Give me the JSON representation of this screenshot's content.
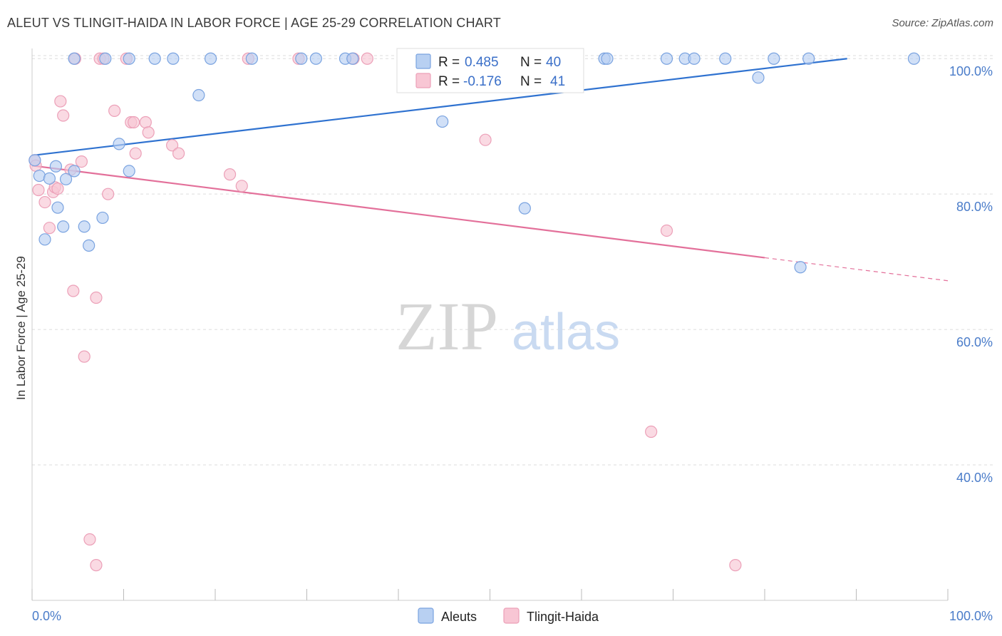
{
  "title": "ALEUT VS TLINGIT-HAIDA IN LABOR FORCE | AGE 25-29 CORRELATION CHART",
  "source": "Source: ZipAtlas.com",
  "watermark": {
    "zip": "ZIP",
    "atlas": "atlas"
  },
  "colors": {
    "aleut_fill": "#b8d0f2",
    "aleut_stroke": "#7aa3e0",
    "aleut_line": "#2f72d0",
    "tlingit_fill": "#f8c6d4",
    "tlingit_stroke": "#eca0b8",
    "tlingit_line": "#e3709a",
    "tick_label": "#4a7cc9",
    "grid": "#dddddd"
  },
  "legend": {
    "rows": [
      {
        "r_label": "R = ",
        "r_value": "0.485",
        "n_label": "N = ",
        "n_value": "40"
      },
      {
        "r_label": "R = ",
        "r_value": "-0.176",
        "n_label": "N = ",
        "n_value": "41"
      }
    ]
  },
  "chart_data": {
    "type": "scatter",
    "xlabel": "",
    "ylabel": "In Labor Force | Age 25-29",
    "xlim": [
      0,
      100
    ],
    "ylim": [
      20,
      101.5
    ],
    "x_tick_labels": [
      "0.0%",
      "100.0%"
    ],
    "y_ticks": [
      {
        "value": 100,
        "label": "100.0%"
      },
      {
        "value": 80,
        "label": "80.0%"
      },
      {
        "value": 60,
        "label": "60.0%"
      },
      {
        "value": 40,
        "label": "40.0%"
      }
    ],
    "grid": "horizontal dashed",
    "legend_position": "top-center",
    "series": [
      {
        "name": "Aleuts",
        "points": [
          [
            0.3,
            85.0
          ],
          [
            0.8,
            82.7
          ],
          [
            1.4,
            73.3
          ],
          [
            1.9,
            82.3
          ],
          [
            2.6,
            84.1
          ],
          [
            2.8,
            78.0
          ],
          [
            3.4,
            75.2
          ],
          [
            3.7,
            82.2
          ],
          [
            4.6,
            83.4
          ],
          [
            5.7,
            75.2
          ],
          [
            6.2,
            72.4
          ],
          [
            7.7,
            76.5
          ],
          [
            9.5,
            87.4
          ],
          [
            10.6,
            83.4
          ],
          [
            18.2,
            94.6
          ],
          [
            44.8,
            90.7
          ],
          [
            53.8,
            77.9
          ],
          [
            79.3,
            97.2
          ],
          [
            83.9,
            69.2
          ],
          [
            4.6,
            100.0
          ],
          [
            8.0,
            100.0
          ],
          [
            10.6,
            100.0
          ],
          [
            13.4,
            100.0
          ],
          [
            15.4,
            100.0
          ],
          [
            19.5,
            100.0
          ],
          [
            24.0,
            100.0
          ],
          [
            29.4,
            100.0
          ],
          [
            31.0,
            100.0
          ],
          [
            34.2,
            100.0
          ],
          [
            35.0,
            100.0
          ],
          [
            50.0,
            100.0
          ],
          [
            62.5,
            100.0
          ],
          [
            62.8,
            100.0
          ],
          [
            69.3,
            100.0
          ],
          [
            71.3,
            100.0
          ],
          [
            72.3,
            100.0
          ],
          [
            75.7,
            100.0
          ],
          [
            81.0,
            100.0
          ],
          [
            84.8,
            100.0
          ],
          [
            96.3,
            100.0
          ]
        ]
      },
      {
        "name": "Tlingit-Haida",
        "points": [
          [
            0.3,
            85.0
          ],
          [
            0.7,
            80.6
          ],
          [
            1.4,
            78.8
          ],
          [
            1.9,
            75.0
          ],
          [
            2.3,
            80.3
          ],
          [
            2.5,
            81.0
          ],
          [
            3.1,
            93.7
          ],
          [
            3.4,
            91.6
          ],
          [
            4.2,
            83.6
          ],
          [
            4.5,
            65.7
          ],
          [
            5.4,
            84.8
          ],
          [
            5.7,
            56.0
          ],
          [
            6.3,
            29.0
          ],
          [
            7.0,
            64.7
          ],
          [
            7.0,
            25.2
          ],
          [
            8.3,
            80.0
          ],
          [
            9.0,
            92.3
          ],
          [
            10.8,
            90.6
          ],
          [
            11.1,
            90.6
          ],
          [
            11.3,
            86.0
          ],
          [
            12.4,
            90.6
          ],
          [
            12.7,
            89.1
          ],
          [
            15.3,
            87.2
          ],
          [
            16.0,
            86.0
          ],
          [
            21.6,
            82.9
          ],
          [
            22.9,
            81.2
          ],
          [
            49.5,
            88.0
          ],
          [
            67.6,
            44.9
          ],
          [
            69.3,
            74.6
          ],
          [
            76.8,
            25.2
          ],
          [
            4.7,
            100.0
          ],
          [
            7.4,
            100.0
          ],
          [
            7.8,
            100.0
          ],
          [
            10.3,
            100.0
          ],
          [
            23.6,
            100.0
          ],
          [
            29.1,
            100.0
          ],
          [
            35.1,
            100.0
          ],
          [
            36.6,
            100.0
          ],
          [
            52.6,
            97.5
          ],
          [
            0.4,
            84.2
          ],
          [
            2.8,
            80.8
          ]
        ]
      }
    ],
    "trend_lines": [
      {
        "series": "Aleuts",
        "x0": 0,
        "y0": 85.7,
        "x1": 89,
        "y1": 100.0,
        "dashed_to": null
      },
      {
        "series": "Tlingit-Haida",
        "x0": 0,
        "y0": 84.2,
        "x1": 80,
        "y1": 70.6,
        "dashed_to": [
          100,
          67.2
        ]
      }
    ]
  },
  "bottom_legend": [
    "Aleuts",
    "Tlingit-Haida"
  ]
}
